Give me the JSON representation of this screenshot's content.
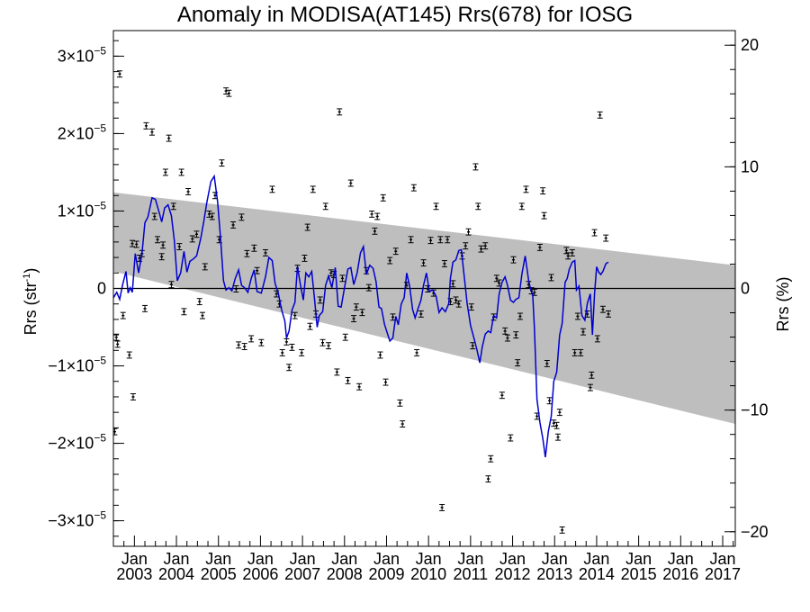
{
  "chart_data": {
    "type": "line",
    "title": "Anomaly in MODISA(AT145) Rrs(678) for IOSG",
    "ylabel_left_base": "Rrs (str",
    "ylabel_left_sup": "-1",
    "ylabel_left_end": ")",
    "ylabel_right": "Rrs (%)",
    "xlabel": "",
    "x_unit": "decimal year",
    "xlim": [
      2002.5,
      2017.3
    ],
    "ylim_left": [
      -3.33e-05,
      3.33e-05
    ],
    "ylim_right": [
      -21.2,
      21.2
    ],
    "x_tick_top_label": "Jan",
    "x_ticks": [
      {
        "year_label": "2003",
        "x": 2003.0
      },
      {
        "year_label": "2004",
        "x": 2004.0
      },
      {
        "year_label": "2005",
        "x": 2005.0
      },
      {
        "year_label": "2006",
        "x": 2006.0
      },
      {
        "year_label": "2007",
        "x": 2007.0
      },
      {
        "year_label": "2008",
        "x": 2008.0
      },
      {
        "year_label": "2009",
        "x": 2009.0
      },
      {
        "year_label": "2010",
        "x": 2010.0
      },
      {
        "year_label": "2011",
        "x": 2011.0
      },
      {
        "year_label": "2012",
        "x": 2012.0
      },
      {
        "year_label": "2013",
        "x": 2013.0
      },
      {
        "year_label": "2014",
        "x": 2014.0
      },
      {
        "year_label": "2015",
        "x": 2015.0
      },
      {
        "year_label": "2016",
        "x": 2016.0
      },
      {
        "year_label": "2017",
        "x": 2017.0
      }
    ],
    "y_ticks_left": [
      {
        "mantissa": "3",
        "exponent": "−5",
        "value": 3e-05
      },
      {
        "mantissa": "2",
        "exponent": "−5",
        "value": 2e-05
      },
      {
        "mantissa": "1",
        "exponent": "−5",
        "value": 1e-05
      },
      {
        "mantissa": "0",
        "exponent": "",
        "value": 0
      },
      {
        "mantissa": "−1",
        "exponent": "−5",
        "value": -1e-05
      },
      {
        "mantissa": "−2",
        "exponent": "−5",
        "value": -2e-05
      },
      {
        "mantissa": "−3",
        "exponent": "−5",
        "value": -3e-05
      }
    ],
    "times_sign": "×10",
    "y_ticks_right": [
      {
        "label": "20",
        "value": 20
      },
      {
        "label": "10",
        "value": 10
      },
      {
        "label": "0",
        "value": 0
      },
      {
        "label": "−10",
        "value": -10
      },
      {
        "label": "−20",
        "value": -20
      }
    ],
    "band": {
      "upper": [
        [
          2002.5,
          1.24e-05
        ],
        [
          2017.3,
          3e-06
        ]
      ],
      "lower": [
        [
          2002.5,
          2.2e-06
        ],
        [
          2017.3,
          -1.75e-05
        ]
      ],
      "color": "#bebebe"
    },
    "zero_line_color": "#000000",
    "smooth_series_color": "#0000cc",
    "points_color": "#000000",
    "errorbar_halfwidth": 4e-07,
    "points": [
      [
        2002.53,
        -1.85e-05
      ],
      [
        2002.57,
        -6.3e-06
      ],
      [
        2002.6,
        -7.2e-06
      ],
      [
        2002.65,
        2.77e-05
      ],
      [
        2002.73,
        -3.5e-06
      ],
      [
        2002.88,
        -8.6e-06
      ],
      [
        2002.95,
        5.8e-06
      ],
      [
        2002.97,
        -1.4e-05
      ],
      [
        2003.05,
        5.7e-06
      ],
      [
        2003.12,
        3.9e-06
      ],
      [
        2003.18,
        4.5e-06
      ],
      [
        2003.25,
        -2.6e-06
      ],
      [
        2003.28,
        2.1e-05
      ],
      [
        2003.42,
        2.02e-05
      ],
      [
        2003.48,
        9.3e-06
      ],
      [
        2003.55,
        6.3e-06
      ],
      [
        2003.65,
        4.1e-06
      ],
      [
        2003.68,
        5.6e-06
      ],
      [
        2003.74,
        1.5e-05
      ],
      [
        2003.82,
        1.94e-05
      ],
      [
        2003.88,
        5e-07
      ],
      [
        2003.93,
        1.06e-05
      ],
      [
        2004.07,
        5.4e-06
      ],
      [
        2004.12,
        1.5e-05
      ],
      [
        2004.18,
        -3e-06
      ],
      [
        2004.28,
        1.25e-05
      ],
      [
        2004.38,
        6.4e-06
      ],
      [
        2004.48,
        7e-06
      ],
      [
        2004.55,
        -1.7e-06
      ],
      [
        2004.62,
        -3.5e-06
      ],
      [
        2004.68,
        2.8e-06
      ],
      [
        2004.78,
        9.6e-06
      ],
      [
        2004.85,
        9.3e-06
      ],
      [
        2004.92,
        1.2e-05
      ],
      [
        2005.02,
        6.3e-06
      ],
      [
        2005.08,
        1.62e-05
      ],
      [
        2005.18,
        2.55e-05
      ],
      [
        2005.25,
        2.52e-05
      ],
      [
        2005.35,
        8.2e-06
      ],
      [
        2005.42,
        -6e-08
      ],
      [
        2005.48,
        -7.3e-06
      ],
      [
        2005.55,
        9.2e-06
      ],
      [
        2005.62,
        -7.5e-06
      ],
      [
        2005.68,
        4.5e-06
      ],
      [
        2005.78,
        -6.5e-06
      ],
      [
        2005.85,
        5.2e-06
      ],
      [
        2005.92,
        2.3e-06
      ],
      [
        2006.02,
        -7e-06
      ],
      [
        2006.12,
        4.6e-06
      ],
      [
        2006.28,
        1.28e-05
      ],
      [
        2006.38,
        -7e-07
      ],
      [
        2006.45,
        -2e-06
      ],
      [
        2006.52,
        -8.3e-06
      ],
      [
        2006.62,
        -6.9e-06
      ],
      [
        2006.68,
        -1.02e-05
      ],
      [
        2006.75,
        -7.6e-06
      ],
      [
        2006.82,
        -3.5e-06
      ],
      [
        2006.88,
        2.6e-06
      ],
      [
        2006.98,
        -8.3e-06
      ],
      [
        2007.05,
        3.9e-06
      ],
      [
        2007.12,
        7.9e-06
      ],
      [
        2007.18,
        -4.9e-06
      ],
      [
        2007.25,
        1.28e-05
      ],
      [
        2007.32,
        -3.3e-06
      ],
      [
        2007.42,
        -1.5e-06
      ],
      [
        2007.48,
        -7e-06
      ],
      [
        2007.55,
        1.06e-05
      ],
      [
        2007.62,
        -7.4e-06
      ],
      [
        2007.68,
        2e-06
      ],
      [
        2007.75,
        1.8e-06
      ],
      [
        2007.82,
        -1.08e-05
      ],
      [
        2007.88,
        2.28e-05
      ],
      [
        2007.95,
        1.3e-06
      ],
      [
        2008.02,
        -6.3e-06
      ],
      [
        2008.08,
        -1.19e-05
      ],
      [
        2008.15,
        1.36e-05
      ],
      [
        2008.22,
        -3.9e-06
      ],
      [
        2008.28,
        -2.4e-06
      ],
      [
        2008.35,
        -1.27e-05
      ],
      [
        2008.42,
        -3.1e-06
      ],
      [
        2008.52,
        2.3e-06
      ],
      [
        2008.58,
        1e-07
      ],
      [
        2008.65,
        9.6e-06
      ],
      [
        2008.72,
        7.4e-06
      ],
      [
        2008.78,
        9.3e-06
      ],
      [
        2008.85,
        -8.6e-06
      ],
      [
        2008.92,
        1.17e-05
      ],
      [
        2008.98,
        -1.21e-05
      ],
      [
        2009.08,
        3.6e-06
      ],
      [
        2009.15,
        -3.7e-06
      ],
      [
        2009.22,
        4.8e-06
      ],
      [
        2009.32,
        -1.48e-05
      ],
      [
        2009.38,
        -1.75e-05
      ],
      [
        2009.48,
        4e-07
      ],
      [
        2009.58,
        6.3e-06
      ],
      [
        2009.65,
        1.3e-05
      ],
      [
        2009.72,
        -8.3e-06
      ],
      [
        2009.82,
        -3.3e-06
      ],
      [
        2009.88,
        3.3e-06
      ],
      [
        2009.98,
        -6e-08
      ],
      [
        2010.05,
        6.2e-06
      ],
      [
        2010.12,
        -6e-07
      ],
      [
        2010.18,
        1.06e-05
      ],
      [
        2010.28,
        6.3e-06
      ],
      [
        2010.32,
        -2.83e-05
      ],
      [
        2010.38,
        3.2e-06
      ],
      [
        2010.45,
        6.3e-06
      ],
      [
        2010.52,
        -1.7e-06
      ],
      [
        2010.58,
        6e-07
      ],
      [
        2010.65,
        -1.5e-06
      ],
      [
        2010.72,
        -2e-06
      ],
      [
        2010.8,
        4.2e-06
      ],
      [
        2010.88,
        5.5e-06
      ],
      [
        2010.95,
        7.3e-06
      ],
      [
        2011.02,
        -2.4e-06
      ],
      [
        2011.05,
        -7.4e-06
      ],
      [
        2011.12,
        1.57e-05
      ],
      [
        2011.18,
        1.06e-05
      ],
      [
        2011.25,
        5.1e-06
      ],
      [
        2011.35,
        5.5e-06
      ],
      [
        2011.42,
        -2.46e-05
      ],
      [
        2011.48,
        -2.2e-05
      ],
      [
        2011.55,
        -3.7e-06
      ],
      [
        2011.62,
        1.3e-06
      ],
      [
        2011.68,
        7e-07
      ],
      [
        2011.75,
        -1.38e-05
      ],
      [
        2011.82,
        -5.5e-06
      ],
      [
        2011.88,
        -6.4e-06
      ],
      [
        2011.95,
        -1.93e-05
      ],
      [
        2012.02,
        3.7e-06
      ],
      [
        2012.08,
        -6e-06
      ],
      [
        2012.12,
        -9.6e-06
      ],
      [
        2012.18,
        -3.6e-06
      ],
      [
        2012.22,
        1.06e-05
      ],
      [
        2012.32,
        1.28e-05
      ],
      [
        2012.38,
        5e-07
      ],
      [
        2012.45,
        -3e-07
      ],
      [
        2012.52,
        -5e-07
      ],
      [
        2012.58,
        -1.65e-05
      ],
      [
        2012.65,
        5.3e-06
      ],
      [
        2012.72,
        1.26e-05
      ],
      [
        2012.75,
        9.4e-06
      ],
      [
        2012.82,
        -9.7e-06
      ],
      [
        2012.88,
        -1.45e-05
      ],
      [
        2012.92,
        1.4e-06
      ],
      [
        2012.98,
        -1.74e-05
      ],
      [
        2013.05,
        -1.77e-05
      ],
      [
        2013.08,
        -1.92e-05
      ],
      [
        2013.12,
        -1.6e-05
      ],
      [
        2013.18,
        -3.12e-05
      ],
      [
        2013.28,
        4.9e-06
      ],
      [
        2013.32,
        4.2e-06
      ],
      [
        2013.42,
        4.6e-06
      ],
      [
        2013.48,
        -8.3e-06
      ],
      [
        2013.55,
        -3.6e-06
      ],
      [
        2013.62,
        -8.3e-06
      ],
      [
        2013.68,
        -5.6e-06
      ],
      [
        2013.78,
        -3.3e-06
      ],
      [
        2013.85,
        -1.28e-05
      ],
      [
        2013.88,
        -1.12e-05
      ],
      [
        2013.95,
        7.2e-06
      ],
      [
        2014.02,
        -6.5e-06
      ],
      [
        2014.08,
        2.24e-05
      ],
      [
        2014.15,
        -2.7e-06
      ],
      [
        2014.22,
        6.5e-06
      ],
      [
        2014.28,
        -3.3e-06
      ]
    ],
    "smooth_series": [
      [
        2002.5,
        -1.2e-06
      ],
      [
        2002.58,
        -5e-07
      ],
      [
        2002.65,
        -1.4e-06
      ],
      [
        2002.72,
        5e-07
      ],
      [
        2002.8,
        2.2e-06
      ],
      [
        2002.85,
        -6e-07
      ],
      [
        2002.9,
        1e-07
      ],
      [
        2002.95,
        -5e-07
      ],
      [
        2003.02,
        4.5e-06
      ],
      [
        2003.1,
        2e-06
      ],
      [
        2003.18,
        4.5e-06
      ],
      [
        2003.25,
        8.5e-06
      ],
      [
        2003.32,
        9.2e-06
      ],
      [
        2003.42,
        1.17e-05
      ],
      [
        2003.5,
        1.15e-05
      ],
      [
        2003.58,
        1e-05
      ],
      [
        2003.65,
        8.6e-06
      ],
      [
        2003.72,
        1.04e-05
      ],
      [
        2003.8,
        1.08e-05
      ],
      [
        2003.88,
        9.4e-06
      ],
      [
        2003.95,
        6.2e-06
      ],
      [
        2004.02,
        1e-06
      ],
      [
        2004.1,
        2e-06
      ],
      [
        2004.18,
        4.8e-06
      ],
      [
        2004.25,
        2.1e-06
      ],
      [
        2004.32,
        3.5e-06
      ],
      [
        2004.4,
        3.8e-06
      ],
      [
        2004.48,
        4.2e-06
      ],
      [
        2004.58,
        6.5e-06
      ],
      [
        2004.65,
        8.6e-06
      ],
      [
        2004.72,
        1.1e-05
      ],
      [
        2004.82,
        1.38e-05
      ],
      [
        2004.9,
        1.45e-05
      ],
      [
        2004.98,
        1.12e-05
      ],
      [
        2005.05,
        6.5e-06
      ],
      [
        2005.12,
        1e-06
      ],
      [
        2005.18,
        -2e-07
      ],
      [
        2005.25,
        1e-07
      ],
      [
        2005.32,
        -3e-07
      ],
      [
        2005.4,
        1.3e-06
      ],
      [
        2005.48,
        2.4e-06
      ],
      [
        2005.55,
        4e-07
      ],
      [
        2005.62,
        1e-07
      ],
      [
        2005.7,
        -5e-07
      ],
      [
        2005.78,
        1.3e-06
      ],
      [
        2005.85,
        2.4e-06
      ],
      [
        2005.92,
        -4e-07
      ],
      [
        2006.02,
        -6e-07
      ],
      [
        2006.12,
        1.5e-06
      ],
      [
        2006.2,
        4e-06
      ],
      [
        2006.28,
        3.6e-06
      ],
      [
        2006.35,
        6e-07
      ],
      [
        2006.42,
        -5e-07
      ],
      [
        2006.5,
        -2.7e-06
      ],
      [
        2006.58,
        -4.2e-06
      ],
      [
        2006.62,
        -6.4e-06
      ],
      [
        2006.68,
        -5.5e-06
      ],
      [
        2006.75,
        -2.8e-06
      ],
      [
        2006.82,
        -1.8e-06
      ],
      [
        2006.88,
        2.8e-06
      ],
      [
        2006.95,
        5e-07
      ],
      [
        2007.02,
        -1.5e-06
      ],
      [
        2007.08,
        2e-06
      ],
      [
        2007.15,
        1.5e-06
      ],
      [
        2007.22,
        2.2e-06
      ],
      [
        2007.28,
        -1e-06
      ],
      [
        2007.35,
        -5e-06
      ],
      [
        2007.4,
        -3.5e-06
      ],
      [
        2007.48,
        -3e-06
      ],
      [
        2007.55,
        4e-07
      ],
      [
        2007.62,
        1.6e-06
      ],
      [
        2007.7,
        1e-07
      ],
      [
        2007.78,
        2.7e-06
      ],
      [
        2007.85,
        -2.3e-06
      ],
      [
        2007.92,
        -2.4e-06
      ],
      [
        2008.0,
        1e-07
      ],
      [
        2008.08,
        2.5e-06
      ],
      [
        2008.15,
        2.7e-06
      ],
      [
        2008.22,
        5e-07
      ],
      [
        2008.3,
        2e-06
      ],
      [
        2008.38,
        4.6e-06
      ],
      [
        2008.45,
        5.4e-06
      ],
      [
        2008.52,
        1.8e-06
      ],
      [
        2008.6,
        3e-06
      ],
      [
        2008.68,
        2.6e-06
      ],
      [
        2008.75,
        9e-07
      ],
      [
        2008.82,
        -2.4e-06
      ],
      [
        2008.88,
        -2.6e-06
      ],
      [
        2008.95,
        -4.6e-06
      ],
      [
        2009.02,
        -5.8e-06
      ],
      [
        2009.08,
        -6.8e-06
      ],
      [
        2009.15,
        -6.4e-06
      ],
      [
        2009.22,
        -3.6e-06
      ],
      [
        2009.28,
        -4.7e-06
      ],
      [
        2009.35,
        -2e-06
      ],
      [
        2009.42,
        -1.2e-06
      ],
      [
        2009.48,
        2e-06
      ],
      [
        2009.55,
        3e-07
      ],
      [
        2009.62,
        -2.7e-06
      ],
      [
        2009.68,
        -3.8e-06
      ],
      [
        2009.75,
        -2.6e-06
      ],
      [
        2009.82,
        -1.5e-06
      ],
      [
        2009.88,
        4e-07
      ],
      [
        2009.95,
        2e-06
      ],
      [
        2010.02,
        -4e-07
      ],
      [
        2010.1,
        -2e-07
      ],
      [
        2010.18,
        -1e-06
      ],
      [
        2010.25,
        -3.1e-06
      ],
      [
        2010.32,
        -2.5e-06
      ],
      [
        2010.4,
        -3e-06
      ],
      [
        2010.48,
        -2e-06
      ],
      [
        2010.52,
        1.3e-06
      ],
      [
        2010.58,
        3.4e-06
      ],
      [
        2010.65,
        3.7e-06
      ],
      [
        2010.72,
        4.9e-06
      ],
      [
        2010.78,
        5e-06
      ],
      [
        2010.85,
        1.5e-06
      ],
      [
        2010.92,
        -2e-06
      ],
      [
        2011.0,
        -4.8e-06
      ],
      [
        2011.08,
        -6.4e-06
      ],
      [
        2011.15,
        -7.9e-06
      ],
      [
        2011.22,
        -9.6e-06
      ],
      [
        2011.28,
        -7.5e-06
      ],
      [
        2011.35,
        -5.9e-06
      ],
      [
        2011.42,
        -5.5e-06
      ],
      [
        2011.48,
        -5.7e-06
      ],
      [
        2011.55,
        -3.5e-06
      ],
      [
        2011.62,
        -3.8e-06
      ],
      [
        2011.68,
        -7e-07
      ],
      [
        2011.75,
        8e-07
      ],
      [
        2011.82,
        1.5e-06
      ],
      [
        2011.88,
        4e-07
      ],
      [
        2011.95,
        -1.5e-06
      ],
      [
        2012.02,
        -1.8e-06
      ],
      [
        2012.08,
        -1.4e-06
      ],
      [
        2012.15,
        -1.2e-06
      ],
      [
        2012.22,
        1.8e-06
      ],
      [
        2012.3,
        4.2e-06
      ],
      [
        2012.38,
        1.1e-06
      ],
      [
        2012.42,
        1e-07
      ],
      [
        2012.48,
        -9e-07
      ],
      [
        2012.52,
        -5.2e-06
      ],
      [
        2012.58,
        -1.43e-05
      ],
      [
        2012.65,
        -1.73e-05
      ],
      [
        2012.72,
        -1.94e-05
      ],
      [
        2012.78,
        -2.18e-05
      ],
      [
        2012.85,
        -1.85e-05
      ],
      [
        2012.92,
        -1.65e-05
      ],
      [
        2012.98,
        -1.2e-05
      ],
      [
        2013.05,
        -1.08e-05
      ],
      [
        2013.12,
        -6e-06
      ],
      [
        2013.18,
        -4.5e-06
      ],
      [
        2013.25,
        8e-07
      ],
      [
        2013.3,
        1.3e-06
      ],
      [
        2013.35,
        2.5e-06
      ],
      [
        2013.42,
        3.4e-06
      ],
      [
        2013.48,
        3.6e-06
      ],
      [
        2013.52,
        -2e-07
      ],
      [
        2013.58,
        3e-07
      ],
      [
        2013.65,
        -3.5e-06
      ],
      [
        2013.72,
        -4.1e-06
      ],
      [
        2013.78,
        -1.9e-06
      ],
      [
        2013.85,
        -7e-07
      ],
      [
        2013.9,
        -6e-06
      ],
      [
        2013.95,
        -7e-07
      ],
      [
        2014.0,
        2.8e-06
      ],
      [
        2014.05,
        2.1e-06
      ],
      [
        2014.1,
        1.8e-06
      ],
      [
        2014.15,
        2.2e-06
      ],
      [
        2014.22,
        3.2e-06
      ],
      [
        2014.28,
        3.4e-06
      ]
    ]
  }
}
